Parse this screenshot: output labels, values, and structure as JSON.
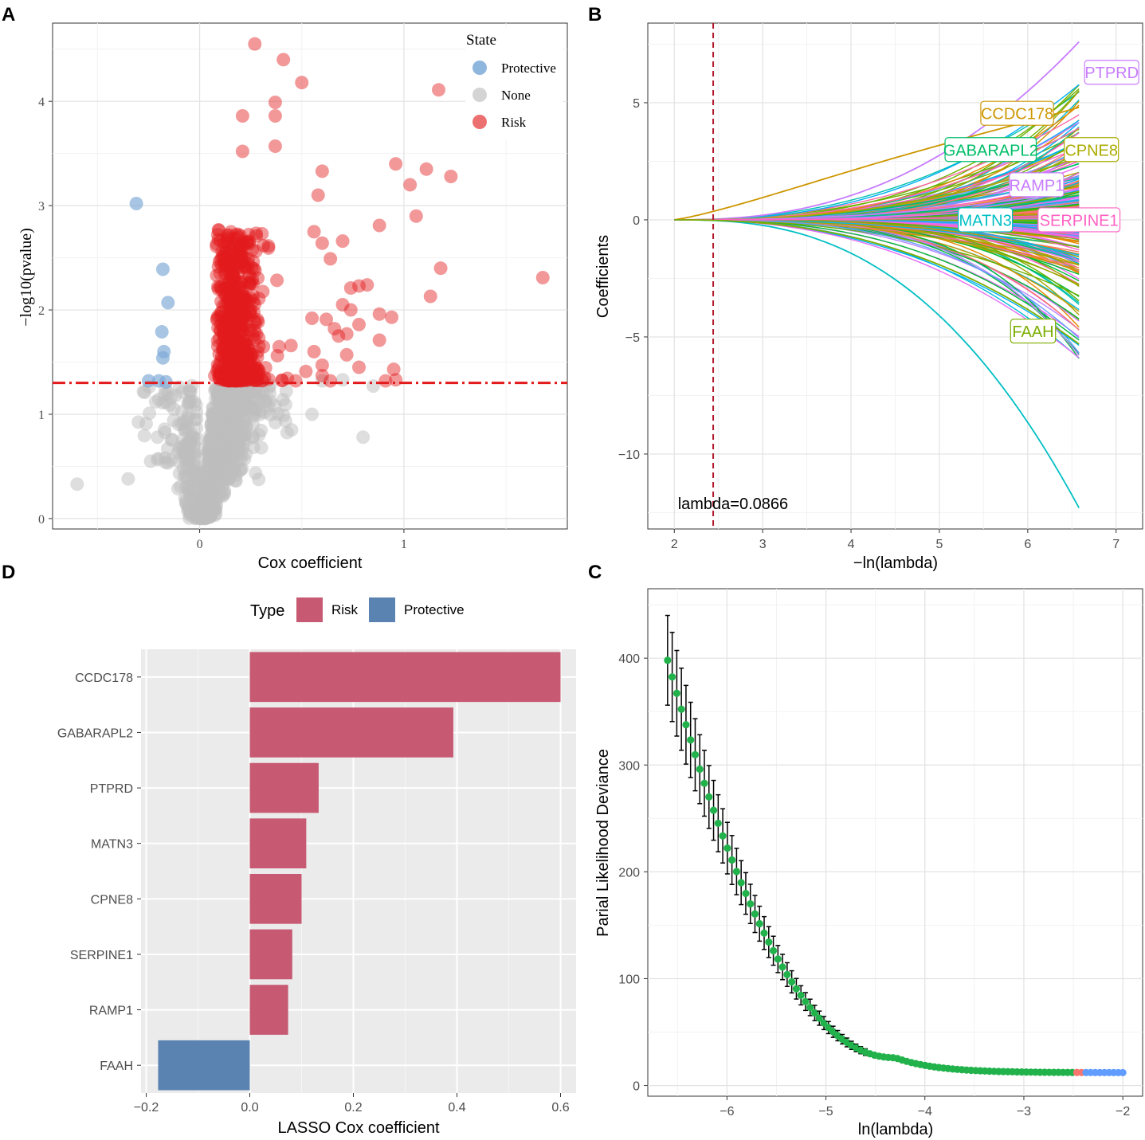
{
  "chart_data": [
    {
      "panel": "A",
      "type": "scatter",
      "xlabel": "Cox coefficient",
      "ylabel": "−log10(pvalue)",
      "xlim": [
        -0.72,
        1.8
      ],
      "ylim": [
        -0.1,
        4.75
      ],
      "xticks": [
        {
          "v": 0,
          "label": "0"
        },
        {
          "v": 1,
          "label": "1"
        }
      ],
      "yticks": [
        {
          "v": 0,
          "label": "0"
        },
        {
          "v": 1,
          "label": "1"
        },
        {
          "v": 2,
          "label": "2"
        },
        {
          "v": 3,
          "label": "3"
        },
        {
          "v": 4,
          "label": "4"
        }
      ],
      "threshold": 1.301,
      "legend": {
        "title": "State",
        "position": "top-right",
        "items": [
          {
            "label": "Protective",
            "color": "#8fb6dd"
          },
          {
            "label": "None",
            "color": "#d4d4d4"
          },
          {
            "label": "Risk",
            "color": "#ec7070"
          }
        ]
      },
      "colors": {
        "Protective": "#7aa7d6",
        "None": "#bebebe",
        "Risk": "#e31a1c",
        "threshold": "#e31a1c"
      },
      "points_protective": [
        [
          -0.31,
          3.02
        ],
        [
          -0.18,
          2.39
        ],
        [
          -0.155,
          2.07
        ],
        [
          -0.185,
          1.79
        ],
        [
          -0.175,
          1.6
        ],
        [
          -0.18,
          1.54
        ],
        [
          -0.25,
          1.32
        ],
        [
          -0.2,
          1.32
        ],
        [
          -0.165,
          1.31
        ]
      ],
      "points_risk_outliers": [
        [
          0.27,
          4.55
        ],
        [
          0.41,
          4.4
        ],
        [
          0.5,
          4.18
        ],
        [
          1.17,
          4.11
        ],
        [
          0.37,
          3.99
        ],
        [
          0.37,
          3.86
        ],
        [
          0.21,
          3.86
        ],
        [
          0.37,
          3.57
        ],
        [
          0.21,
          3.52
        ],
        [
          0.96,
          3.4
        ],
        [
          1.11,
          3.35
        ],
        [
          1.23,
          3.28
        ],
        [
          1.03,
          3.2
        ],
        [
          1.06,
          2.9
        ],
        [
          0.88,
          2.81
        ],
        [
          1.18,
          2.4
        ],
        [
          1.13,
          2.13
        ],
        [
          1.68,
          2.31
        ],
        [
          0.6,
          3.33
        ],
        [
          0.58,
          3.1
        ],
        [
          0.56,
          2.75
        ],
        [
          0.6,
          2.64
        ],
        [
          0.7,
          2.66
        ],
        [
          0.64,
          2.49
        ],
        [
          0.74,
          2.21
        ],
        [
          0.78,
          2.23
        ],
        [
          0.82,
          2.24
        ],
        [
          0.88,
          1.96
        ],
        [
          0.94,
          1.93
        ],
        [
          0.88,
          1.71
        ],
        [
          0.95,
          1.43
        ],
        [
          0.96,
          1.33
        ],
        [
          0.91,
          1.32
        ],
        [
          0.78,
          1.45
        ],
        [
          0.72,
          1.57
        ],
        [
          0.72,
          1.77
        ],
        [
          0.78,
          1.86
        ],
        [
          0.7,
          2.05
        ],
        [
          0.74,
          2.0
        ],
        [
          0.62,
          1.91
        ],
        [
          0.55,
          1.92
        ],
        [
          0.66,
          1.82
        ],
        [
          0.68,
          1.75
        ],
        [
          0.56,
          1.6
        ],
        [
          0.6,
          1.47
        ],
        [
          0.6,
          1.37
        ],
        [
          0.52,
          1.41
        ],
        [
          0.47,
          1.32
        ],
        [
          0.64,
          1.32
        ]
      ],
      "risk_cloud_count": 520,
      "none_cloud_count": 900,
      "none_outliers": [
        [
          -0.6,
          0.33
        ],
        [
          -0.35,
          0.38
        ],
        [
          -0.24,
          0.55
        ],
        [
          0.8,
          0.78
        ],
        [
          0.6,
          1.32
        ],
        [
          0.7,
          1.33
        ],
        [
          0.85,
          1.27
        ],
        [
          0.55,
          1.0
        ],
        [
          0.45,
          0.85
        ]
      ]
    },
    {
      "panel": "B",
      "type": "line",
      "xlabel": "−ln(lambda)",
      "ylabel": "Coefficients",
      "xlim": [
        1.7,
        7.3
      ],
      "ylim": [
        -13.2,
        8.4
      ],
      "xticks": [
        {
          "v": 2,
          "label": "2"
        },
        {
          "v": 3,
          "label": "3"
        },
        {
          "v": 4,
          "label": "4"
        },
        {
          "v": 5,
          "label": "5"
        },
        {
          "v": 6,
          "label": "6"
        },
        {
          "v": 7,
          "label": "7"
        }
      ],
      "yticks": [
        {
          "v": 5,
          "label": "5"
        },
        {
          "v": 0,
          "label": "0"
        },
        {
          "v": -5,
          "label": "−5"
        },
        {
          "v": -10,
          "label": "−10"
        }
      ],
      "cutoff_x": 2.44,
      "cutoff_text": "lambda=0.0866",
      "series_count": 260,
      "highlights": [
        {
          "name": "PTPRD",
          "final": 7.6,
          "color": "#c77cff"
        },
        {
          "name": "CCDC178",
          "final": 4.8,
          "color": "#cd9600"
        },
        {
          "name": "GABARAPL2",
          "final": 2.4,
          "color": "#00be67"
        },
        {
          "name": "CPNE8",
          "final": 2.7,
          "color": "#abab00"
        },
        {
          "name": "RAMP1",
          "final": 1.3,
          "color": "#c77cff"
        },
        {
          "name": "MATN3",
          "final": -12.3,
          "color": "#00bfc4"
        },
        {
          "name": "SERPINE1",
          "final": 0.2,
          "color": "#ff61c3"
        },
        {
          "name": "FAAH",
          "final": -5.3,
          "color": "#7cae00"
        }
      ],
      "labels": [
        {
          "text": "PTPRD",
          "x": 6.95,
          "y": 6.3,
          "color": "#c77cff"
        },
        {
          "text": "CCDC178",
          "x": 5.88,
          "y": 4.55,
          "color": "#cd9600"
        },
        {
          "text": "GABARAPL2",
          "x": 5.58,
          "y": 3.0,
          "color": "#00be67"
        },
        {
          "text": "CPNE8",
          "x": 6.72,
          "y": 3.0,
          "color": "#abab00"
        },
        {
          "text": "RAMP1",
          "x": 6.1,
          "y": 1.5,
          "color": "#c77cff"
        },
        {
          "text": "MATN3",
          "x": 5.52,
          "y": 0.0,
          "color": "#00bfc4"
        },
        {
          "text": "SERPINE1",
          "x": 6.58,
          "y": 0.0,
          "color": "#ff61c3"
        },
        {
          "text": "FAAH",
          "x": 6.06,
          "y": -4.75,
          "color": "#7cae00"
        }
      ]
    },
    {
      "panel": "C",
      "type": "scatter",
      "xlabel": "ln(lambda)",
      "ylabel": "Parial Likelihood Deviance",
      "xlim": [
        -6.8,
        -1.8
      ],
      "ylim": [
        -10,
        465
      ],
      "xticks": [
        {
          "v": -6,
          "label": "−6"
        },
        {
          "v": -5,
          "label": "−5"
        },
        {
          "v": -4,
          "label": "−4"
        },
        {
          "v": -3,
          "label": "−3"
        },
        {
          "v": -2,
          "label": "−2"
        }
      ],
      "yticks": [
        {
          "v": 0,
          "label": "0"
        },
        {
          "v": 100,
          "label": "100"
        },
        {
          "v": 200,
          "label": "200"
        },
        {
          "v": 300,
          "label": "300"
        },
        {
          "v": 400,
          "label": "400"
        }
      ],
      "x_start": -6.6,
      "x_end": -2.0,
      "n_points": 100,
      "min_deviance": 12,
      "start_deviance": 398,
      "split_x": -2.44,
      "colors": {
        "before": "#21b24b",
        "after": "#619cff",
        "mark": "#f8766d",
        "errorbar": "#000000"
      }
    },
    {
      "panel": "D",
      "type": "bar",
      "orientation": "horizontal",
      "xlabel": "LASSO Cox coefficient",
      "ylabel": "",
      "xlim": [
        -0.21,
        0.63
      ],
      "xticks": [
        {
          "v": -0.2,
          "label": "−0.2"
        },
        {
          "v": 0.0,
          "label": "0.0"
        },
        {
          "v": 0.2,
          "label": "0.2"
        },
        {
          "v": 0.4,
          "label": "0.4"
        },
        {
          "v": 0.6,
          "label": "0.6"
        }
      ],
      "categories": [
        "CCDC178",
        "GABARAPL2",
        "PTPRD",
        "MATN3",
        "CPNE8",
        "SERPINE1",
        "RAMP1",
        "FAAH"
      ],
      "values": [
        0.6,
        0.393,
        0.133,
        0.109,
        0.1,
        0.082,
        0.074,
        -0.177
      ],
      "types": [
        "Risk",
        "Risk",
        "Risk",
        "Risk",
        "Risk",
        "Risk",
        "Risk",
        "Protective"
      ],
      "legend": {
        "title": "Type",
        "position": "top",
        "items": [
          {
            "label": "Risk",
            "color": "#c75a72"
          },
          {
            "label": "Protective",
            "color": "#5b83b1"
          }
        ]
      }
    }
  ],
  "panel_letters": [
    "A",
    "B",
    "D",
    "C"
  ]
}
